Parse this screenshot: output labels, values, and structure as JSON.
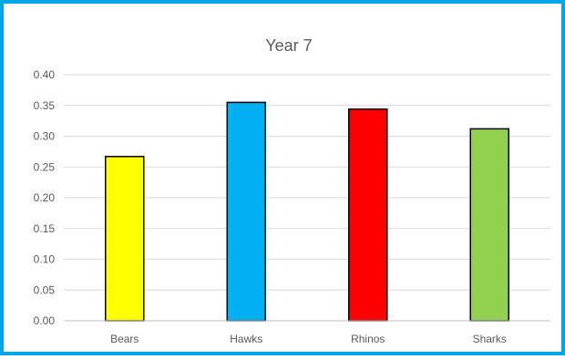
{
  "chart_data": {
    "type": "bar",
    "title": "Year 7",
    "xlabel": "",
    "ylabel": "",
    "categories": [
      "Bears",
      "Hawks",
      "Rhinos",
      "Sharks"
    ],
    "values": [
      0.267,
      0.355,
      0.344,
      0.312
    ],
    "colors": [
      "#ffff00",
      "#00b0f0",
      "#ff0000",
      "#92d050"
    ],
    "bar_outline_color": "#000000",
    "ylim": [
      0,
      0.4
    ],
    "yticks": [
      "0.00",
      "0.05",
      "0.10",
      "0.15",
      "0.20",
      "0.25",
      "0.30",
      "0.35",
      "0.40"
    ],
    "grid": true,
    "legend": "none"
  },
  "style": {
    "border_color": "#00a6e6",
    "gridline_color": "#d9d9d9",
    "axis_line_color": "#bfbfbf",
    "text_color": "#595959"
  }
}
